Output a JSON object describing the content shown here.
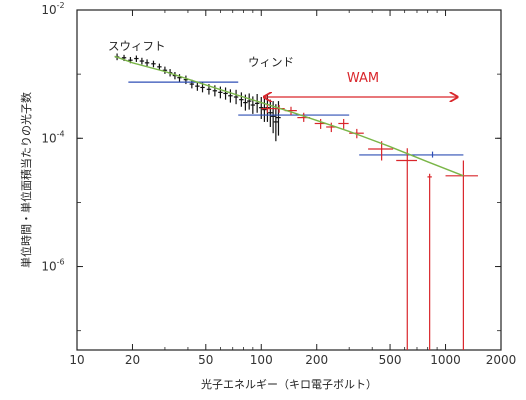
{
  "chart_data": {
    "type": "scatter",
    "xlabel": "光子エネルギー（キロ電子ボルト）",
    "ylabel": "単位時間・単位面積当たりの光子数",
    "x_scale": "log",
    "y_scale": "log",
    "xlim": [
      10,
      2000
    ],
    "ylim": [
      5e-08,
      0.01
    ],
    "x_ticks": [
      10,
      20,
      50,
      100,
      200,
      500,
      1000,
      2000
    ],
    "x_tick_labels": [
      "10",
      "20",
      "50",
      "100",
      "200",
      "500",
      "1000",
      "2000"
    ],
    "y_ticks": [
      0.01,
      0.0001,
      1e-06
    ],
    "y_tick_labels": [
      {
        "base": "10",
        "exp": "-2"
      },
      {
        "base": "10",
        "exp": "-4"
      },
      {
        "base": "10",
        "exp": "-6"
      }
    ],
    "annotations": {
      "swift": "スウィフト",
      "wind": "ウィンド",
      "wam": "WAM",
      "wam_range": [
        100,
        1200
      ]
    },
    "series": [
      {
        "color": "#111111",
        "points": [
          {
            "x": 16.5,
            "y": 0.00185,
            "ylo": 0.00165,
            "yhi": 0.0021
          },
          {
            "x": 18,
            "y": 0.0018,
            "ylo": 0.0016,
            "yhi": 0.002
          },
          {
            "x": 19.5,
            "y": 0.00165,
            "ylo": 0.00148,
            "yhi": 0.00185
          },
          {
            "x": 21,
            "y": 0.00175,
            "ylo": 0.00155,
            "yhi": 0.00195
          },
          {
            "x": 22.5,
            "y": 0.0016,
            "ylo": 0.00142,
            "yhi": 0.0018
          },
          {
            "x": 24,
            "y": 0.0015,
            "ylo": 0.00133,
            "yhi": 0.0017
          },
          {
            "x": 26,
            "y": 0.00145,
            "ylo": 0.00128,
            "yhi": 0.00162
          },
          {
            "x": 28,
            "y": 0.0013,
            "ylo": 0.00115,
            "yhi": 0.00146
          },
          {
            "x": 30,
            "y": 0.00115,
            "ylo": 0.00101,
            "yhi": 0.00131
          },
          {
            "x": 32,
            "y": 0.00105,
            "ylo": 0.00092,
            "yhi": 0.0012
          },
          {
            "x": 34,
            "y": 0.00095,
            "ylo": 0.00083,
            "yhi": 0.00108
          },
          {
            "x": 36,
            "y": 0.00088,
            "ylo": 0.00076,
            "yhi": 0.001
          },
          {
            "x": 39,
            "y": 0.00082,
            "ylo": 0.0007,
            "yhi": 0.00095
          },
          {
            "x": 42,
            "y": 0.0007,
            "ylo": 0.0006,
            "yhi": 0.00082
          },
          {
            "x": 45,
            "y": 0.00065,
            "ylo": 0.00055,
            "yhi": 0.00077
          },
          {
            "x": 48,
            "y": 0.00062,
            "ylo": 0.00052,
            "yhi": 0.00074
          },
          {
            "x": 52,
            "y": 0.00058,
            "ylo": 0.00048,
            "yhi": 0.0007
          },
          {
            "x": 56,
            "y": 0.00055,
            "ylo": 0.00045,
            "yhi": 0.00067
          },
          {
            "x": 60,
            "y": 0.00052,
            "ylo": 0.00042,
            "yhi": 0.00064
          },
          {
            "x": 64,
            "y": 0.0005,
            "ylo": 0.0004,
            "yhi": 0.00062
          },
          {
            "x": 68,
            "y": 0.00046,
            "ylo": 0.00036,
            "yhi": 0.00058
          },
          {
            "x": 73,
            "y": 0.00044,
            "ylo": 0.00034,
            "yhi": 0.00057
          },
          {
            "x": 78,
            "y": 0.0004,
            "ylo": 0.00031,
            "yhi": 0.00052
          },
          {
            "x": 82,
            "y": 0.00036,
            "ylo": 0.00027,
            "yhi": 0.00048
          },
          {
            "x": 86,
            "y": 0.00038,
            "ylo": 0.00028,
            "yhi": 0.0005
          },
          {
            "x": 90,
            "y": 0.00033,
            "ylo": 0.00024,
            "yhi": 0.00045
          },
          {
            "x": 95,
            "y": 0.00035,
            "ylo": 0.00025,
            "yhi": 0.00049
          },
          {
            "x": 100,
            "y": 0.0003,
            "ylo": 0.0002,
            "yhi": 0.00044
          },
          {
            "x": 104,
            "y": 0.00028,
            "ylo": 0.00018,
            "yhi": 0.00042
          },
          {
            "x": 108,
            "y": 0.0003,
            "ylo": 0.00018,
            "yhi": 0.00047
          },
          {
            "x": 112,
            "y": 0.00025,
            "ylo": 0.00015,
            "yhi": 0.0004
          },
          {
            "x": 116,
            "y": 0.00022,
            "ylo": 0.00012,
            "yhi": 0.00038
          },
          {
            "x": 120,
            "y": 0.00018,
            "ylo": 9e-05,
            "yhi": 0.00034
          },
          {
            "x": 124,
            "y": 0.00021,
            "ylo": 0.00011,
            "yhi": 0.00038
          }
        ]
      },
      {
        "color": "#2f4fb5",
        "points": [
          {
            "x": 43,
            "y": 0.00075,
            "xlo": 19,
            "xhi": 75
          },
          {
            "x": 200,
            "y": 0.00023,
            "xlo": 75,
            "xhi": 300
          },
          {
            "x": 850,
            "y": 5.5e-05,
            "xlo": 340,
            "xhi": 1250,
            "ylo": 5e-05,
            "yhi": 6.2e-05
          }
        ]
      },
      {
        "color": "#d9262b",
        "points": [
          {
            "x": 108,
            "y": 0.00029,
            "xlo": 100,
            "xhi": 118,
            "ylo": 0.00025,
            "yhi": 0.00033
          },
          {
            "x": 125,
            "y": 0.00029,
            "xlo": 118,
            "xhi": 134,
            "ylo": 0.00025,
            "yhi": 0.00033
          },
          {
            "x": 145,
            "y": 0.00027,
            "xlo": 134,
            "xhi": 156,
            "ylo": 0.00023,
            "yhi": 0.00031
          },
          {
            "x": 170,
            "y": 0.00021,
            "xlo": 157,
            "xhi": 184,
            "ylo": 0.00018,
            "yhi": 0.00025
          },
          {
            "x": 210,
            "y": 0.00017,
            "xlo": 195,
            "xhi": 225,
            "ylo": 0.00014,
            "yhi": 0.0002
          },
          {
            "x": 240,
            "y": 0.00015,
            "xlo": 225,
            "xhi": 255,
            "ylo": 0.000125,
            "yhi": 0.000175
          },
          {
            "x": 280,
            "y": 0.00017,
            "xlo": 262,
            "xhi": 298,
            "ylo": 0.00014,
            "yhi": 0.0002
          },
          {
            "x": 330,
            "y": 0.00012,
            "xlo": 300,
            "xhi": 360,
            "ylo": 0.0001,
            "yhi": 0.00014
          },
          {
            "x": 450,
            "y": 6.8e-05,
            "xlo": 380,
            "xhi": 520,
            "ylo": 4.5e-05,
            "yhi": 9e-05
          },
          {
            "x": 620,
            "y": 4.5e-05,
            "xlo": 540,
            "xhi": 700,
            "ylo": 5e-08,
            "yhi": 7e-05
          },
          {
            "x": 820,
            "y": 2.5e-05,
            "ylo": 5e-08,
            "yhi": 2.8e-05
          },
          {
            "x": 1250,
            "y": 2.6e-05,
            "xlo": 1000,
            "xhi": 1500,
            "ylo": 5e-08,
            "yhi": 4.5e-05
          }
        ]
      },
      {
        "type": "line",
        "color": "#7ab648",
        "x": [
          16,
          20,
          30,
          50,
          80,
          100,
          150,
          200,
          300,
          500,
          800,
          1250
        ],
        "y": [
          0.0019,
          0.0015,
          0.0011,
          0.00068,
          0.00044,
          0.00036,
          0.00025,
          0.00019,
          0.000128,
          7.4e-05,
          4.3e-05,
          2.6e-05
        ]
      }
    ]
  }
}
